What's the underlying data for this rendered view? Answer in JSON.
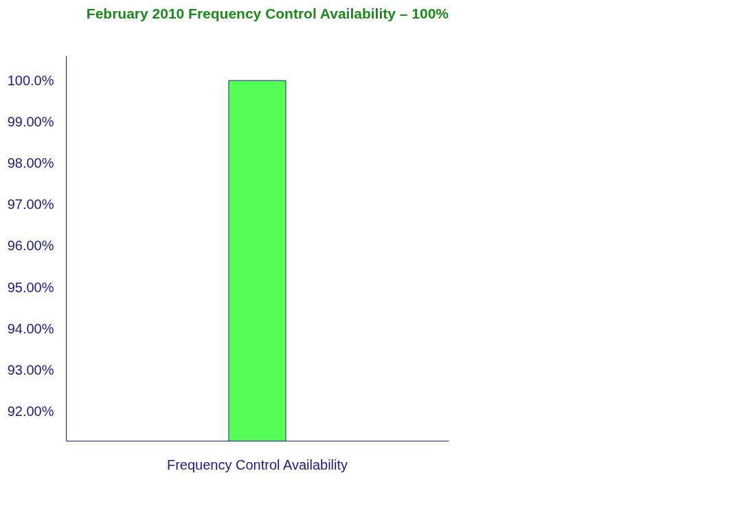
{
  "chart_data": {
    "type": "bar",
    "categories": [
      "Frequency Control Availability"
    ],
    "values": [
      100
    ],
    "color": "#55ff55",
    "ylim": [
      91.3,
      100.6
    ],
    "yticks": [
      {
        "value": 92,
        "label": "92.00%"
      },
      {
        "value": 93,
        "label": "93.00%"
      },
      {
        "value": 94,
        "label": "94.00%"
      },
      {
        "value": 95,
        "label": "95.00%"
      },
      {
        "value": 96,
        "label": "96.00%"
      },
      {
        "value": 97,
        "label": "97.00%"
      },
      {
        "value": 98,
        "label": "98.00%"
      },
      {
        "value": 99,
        "label": "99.00%"
      },
      {
        "value": 100,
        "label": "100.0%"
      }
    ],
    "annotations": [
      "February 2010 Frequency Control Availability – 100%"
    ],
    "grid": false
  }
}
